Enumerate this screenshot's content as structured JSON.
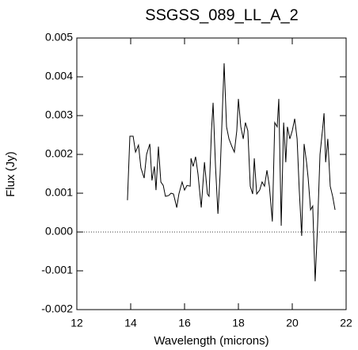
{
  "chart_data": {
    "type": "line",
    "title": "SSGSS_089_LL_A_2",
    "x_label": "Wavelength (microns)",
    "y_label": "Flux (Jy)",
    "color": "#000000",
    "xlim": [
      12,
      22
    ],
    "ylim": [
      -0.002,
      0.005
    ],
    "xticks": [
      12,
      14,
      16,
      18,
      20,
      22
    ],
    "yticks": [
      -0.002,
      -0.001,
      {
        "value": 0,
        "label": "0.000"
      },
      0.001,
      0.002,
      0.003,
      0.004,
      0.005
    ],
    "reference_line": 0,
    "x": [
      13.88,
      13.97,
      14.09,
      14.18,
      14.29,
      14.38,
      14.5,
      14.59,
      14.71,
      14.79,
      14.88,
      14.94,
      15.03,
      15.12,
      15.21,
      15.29,
      15.41,
      15.5,
      15.59,
      15.71,
      15.79,
      15.91,
      16.0,
      16.09,
      16.21,
      16.24,
      16.32,
      16.41,
      16.5,
      16.62,
      16.74,
      16.85,
      16.91,
      17.0,
      17.06,
      17.15,
      17.24,
      17.32,
      17.41,
      17.47,
      17.56,
      17.65,
      17.76,
      17.85,
      17.94,
      18.0,
      18.09,
      18.18,
      18.26,
      18.35,
      18.44,
      18.53,
      18.59,
      18.68,
      18.79,
      18.88,
      18.97,
      19.06,
      19.15,
      19.26,
      19.35,
      19.44,
      19.5,
      19.59,
      19.68,
      19.76,
      19.82,
      19.91,
      20.0,
      20.09,
      20.18,
      20.26,
      20.35,
      20.44,
      20.53,
      20.59,
      20.68,
      20.76,
      20.85,
      20.94,
      21.03,
      21.12,
      21.18,
      21.24,
      21.32,
      21.41,
      21.5,
      21.59
    ],
    "values": [
      0.00082,
      0.00247,
      0.00247,
      0.00206,
      0.00224,
      0.00165,
      0.00139,
      0.002,
      0.00227,
      0.00133,
      0.00169,
      0.00108,
      0.0022,
      0.00129,
      0.0012,
      0.00092,
      0.00094,
      0.001,
      0.00098,
      0.00063,
      0.00098,
      0.00129,
      0.00108,
      0.0012,
      0.00118,
      0.0019,
      0.00169,
      0.00194,
      0.00149,
      0.00063,
      0.0018,
      0.00098,
      0.00092,
      0.00261,
      0.00333,
      0.00169,
      0.00047,
      0.00149,
      0.00322,
      0.00435,
      0.00271,
      0.0024,
      0.0022,
      0.00206,
      0.00261,
      0.00343,
      0.00271,
      0.0024,
      0.00282,
      0.00261,
      0.00118,
      0.00098,
      0.0019,
      0.00098,
      0.00108,
      0.00129,
      0.00118,
      0.00159,
      0.00118,
      0.00027,
      0.00282,
      0.00271,
      0.00343,
      0.00016,
      0.00282,
      0.0018,
      0.00271,
      0.0024,
      0.00261,
      0.00292,
      0.0024,
      0.00108,
      -0.0001,
      0.00227,
      0.0018,
      0.00139,
      0.00057,
      0.00067,
      -0.00127,
      0.00016,
      0.002,
      0.00261,
      0.00306,
      0.0018,
      0.0024,
      0.00118,
      0.00092,
      0.00057
    ]
  }
}
